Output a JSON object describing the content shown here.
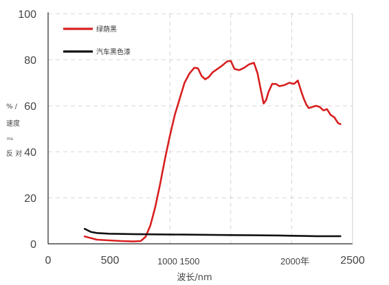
{
  "chart_data": {
    "type": "line",
    "xlabel": "波长/nm",
    "ylabel_parts": [
      "% /",
      "速度",
      "ms",
      "反 对"
    ],
    "ylim": [
      0,
      100
    ],
    "yticks": [
      0,
      20,
      40,
      60,
      80,
      100
    ],
    "x_tick_labels": [
      {
        "x": 0,
        "label": "0"
      },
      {
        "x": 500,
        "label": "500"
      },
      {
        "x": 1000,
        "label": "1000 1500"
      },
      {
        "x": 2000,
        "label": "2000年"
      },
      {
        "x": 2500,
        "label": "2500"
      }
    ],
    "grid": true,
    "legend_position": "top-left",
    "series": [
      {
        "name": "绿荫黑",
        "color": "#d81e1e",
        "points": [
          [
            300,
            3.2
          ],
          [
            400,
            1.8
          ],
          [
            500,
            1.5
          ],
          [
            600,
            1.2
          ],
          [
            700,
            1.0
          ],
          [
            760,
            1.2
          ],
          [
            800,
            3
          ],
          [
            840,
            8
          ],
          [
            880,
            16
          ],
          [
            920,
            26
          ],
          [
            960,
            37
          ],
          [
            1000,
            47
          ],
          [
            1040,
            56
          ],
          [
            1080,
            63
          ],
          [
            1120,
            70
          ],
          [
            1160,
            74
          ],
          [
            1200,
            76.5
          ],
          [
            1230,
            76.3
          ],
          [
            1260,
            73
          ],
          [
            1290,
            71.5
          ],
          [
            1320,
            72.5
          ],
          [
            1350,
            74.5
          ],
          [
            1390,
            76
          ],
          [
            1430,
            77.5
          ],
          [
            1470,
            79.3
          ],
          [
            1500,
            79.5
          ],
          [
            1530,
            76
          ],
          [
            1570,
            75.5
          ],
          [
            1610,
            76.5
          ],
          [
            1650,
            78
          ],
          [
            1690,
            78.7
          ],
          [
            1720,
            74
          ],
          [
            1750,
            66
          ],
          [
            1770,
            61
          ],
          [
            1790,
            62.5
          ],
          [
            1810,
            66
          ],
          [
            1840,
            69.5
          ],
          [
            1870,
            69.5
          ],
          [
            1900,
            68.5
          ],
          [
            1940,
            69
          ],
          [
            1980,
            70
          ],
          [
            2020,
            69.5
          ],
          [
            2050,
            71
          ],
          [
            2080,
            66
          ],
          [
            2100,
            63
          ],
          [
            2120,
            60.5
          ],
          [
            2140,
            59
          ],
          [
            2170,
            59.5
          ],
          [
            2200,
            60
          ],
          [
            2230,
            59.5
          ],
          [
            2260,
            58
          ],
          [
            2290,
            58.5
          ],
          [
            2320,
            56
          ],
          [
            2350,
            55
          ],
          [
            2380,
            52.5
          ],
          [
            2400,
            52
          ]
        ]
      },
      {
        "name": "汽车黑色漆",
        "color": "#111111",
        "points": [
          [
            300,
            6.5
          ],
          [
            350,
            5.2
          ],
          [
            400,
            4.7
          ],
          [
            500,
            4.4
          ],
          [
            700,
            4.2
          ],
          [
            900,
            4.1
          ],
          [
            1100,
            4.0
          ],
          [
            1300,
            3.9
          ],
          [
            1500,
            3.8
          ],
          [
            1700,
            3.7
          ],
          [
            1900,
            3.6
          ],
          [
            2000,
            3.5
          ],
          [
            2100,
            3.4
          ],
          [
            2200,
            3.3
          ],
          [
            2300,
            3.3
          ],
          [
            2400,
            3.3
          ]
        ]
      }
    ]
  }
}
